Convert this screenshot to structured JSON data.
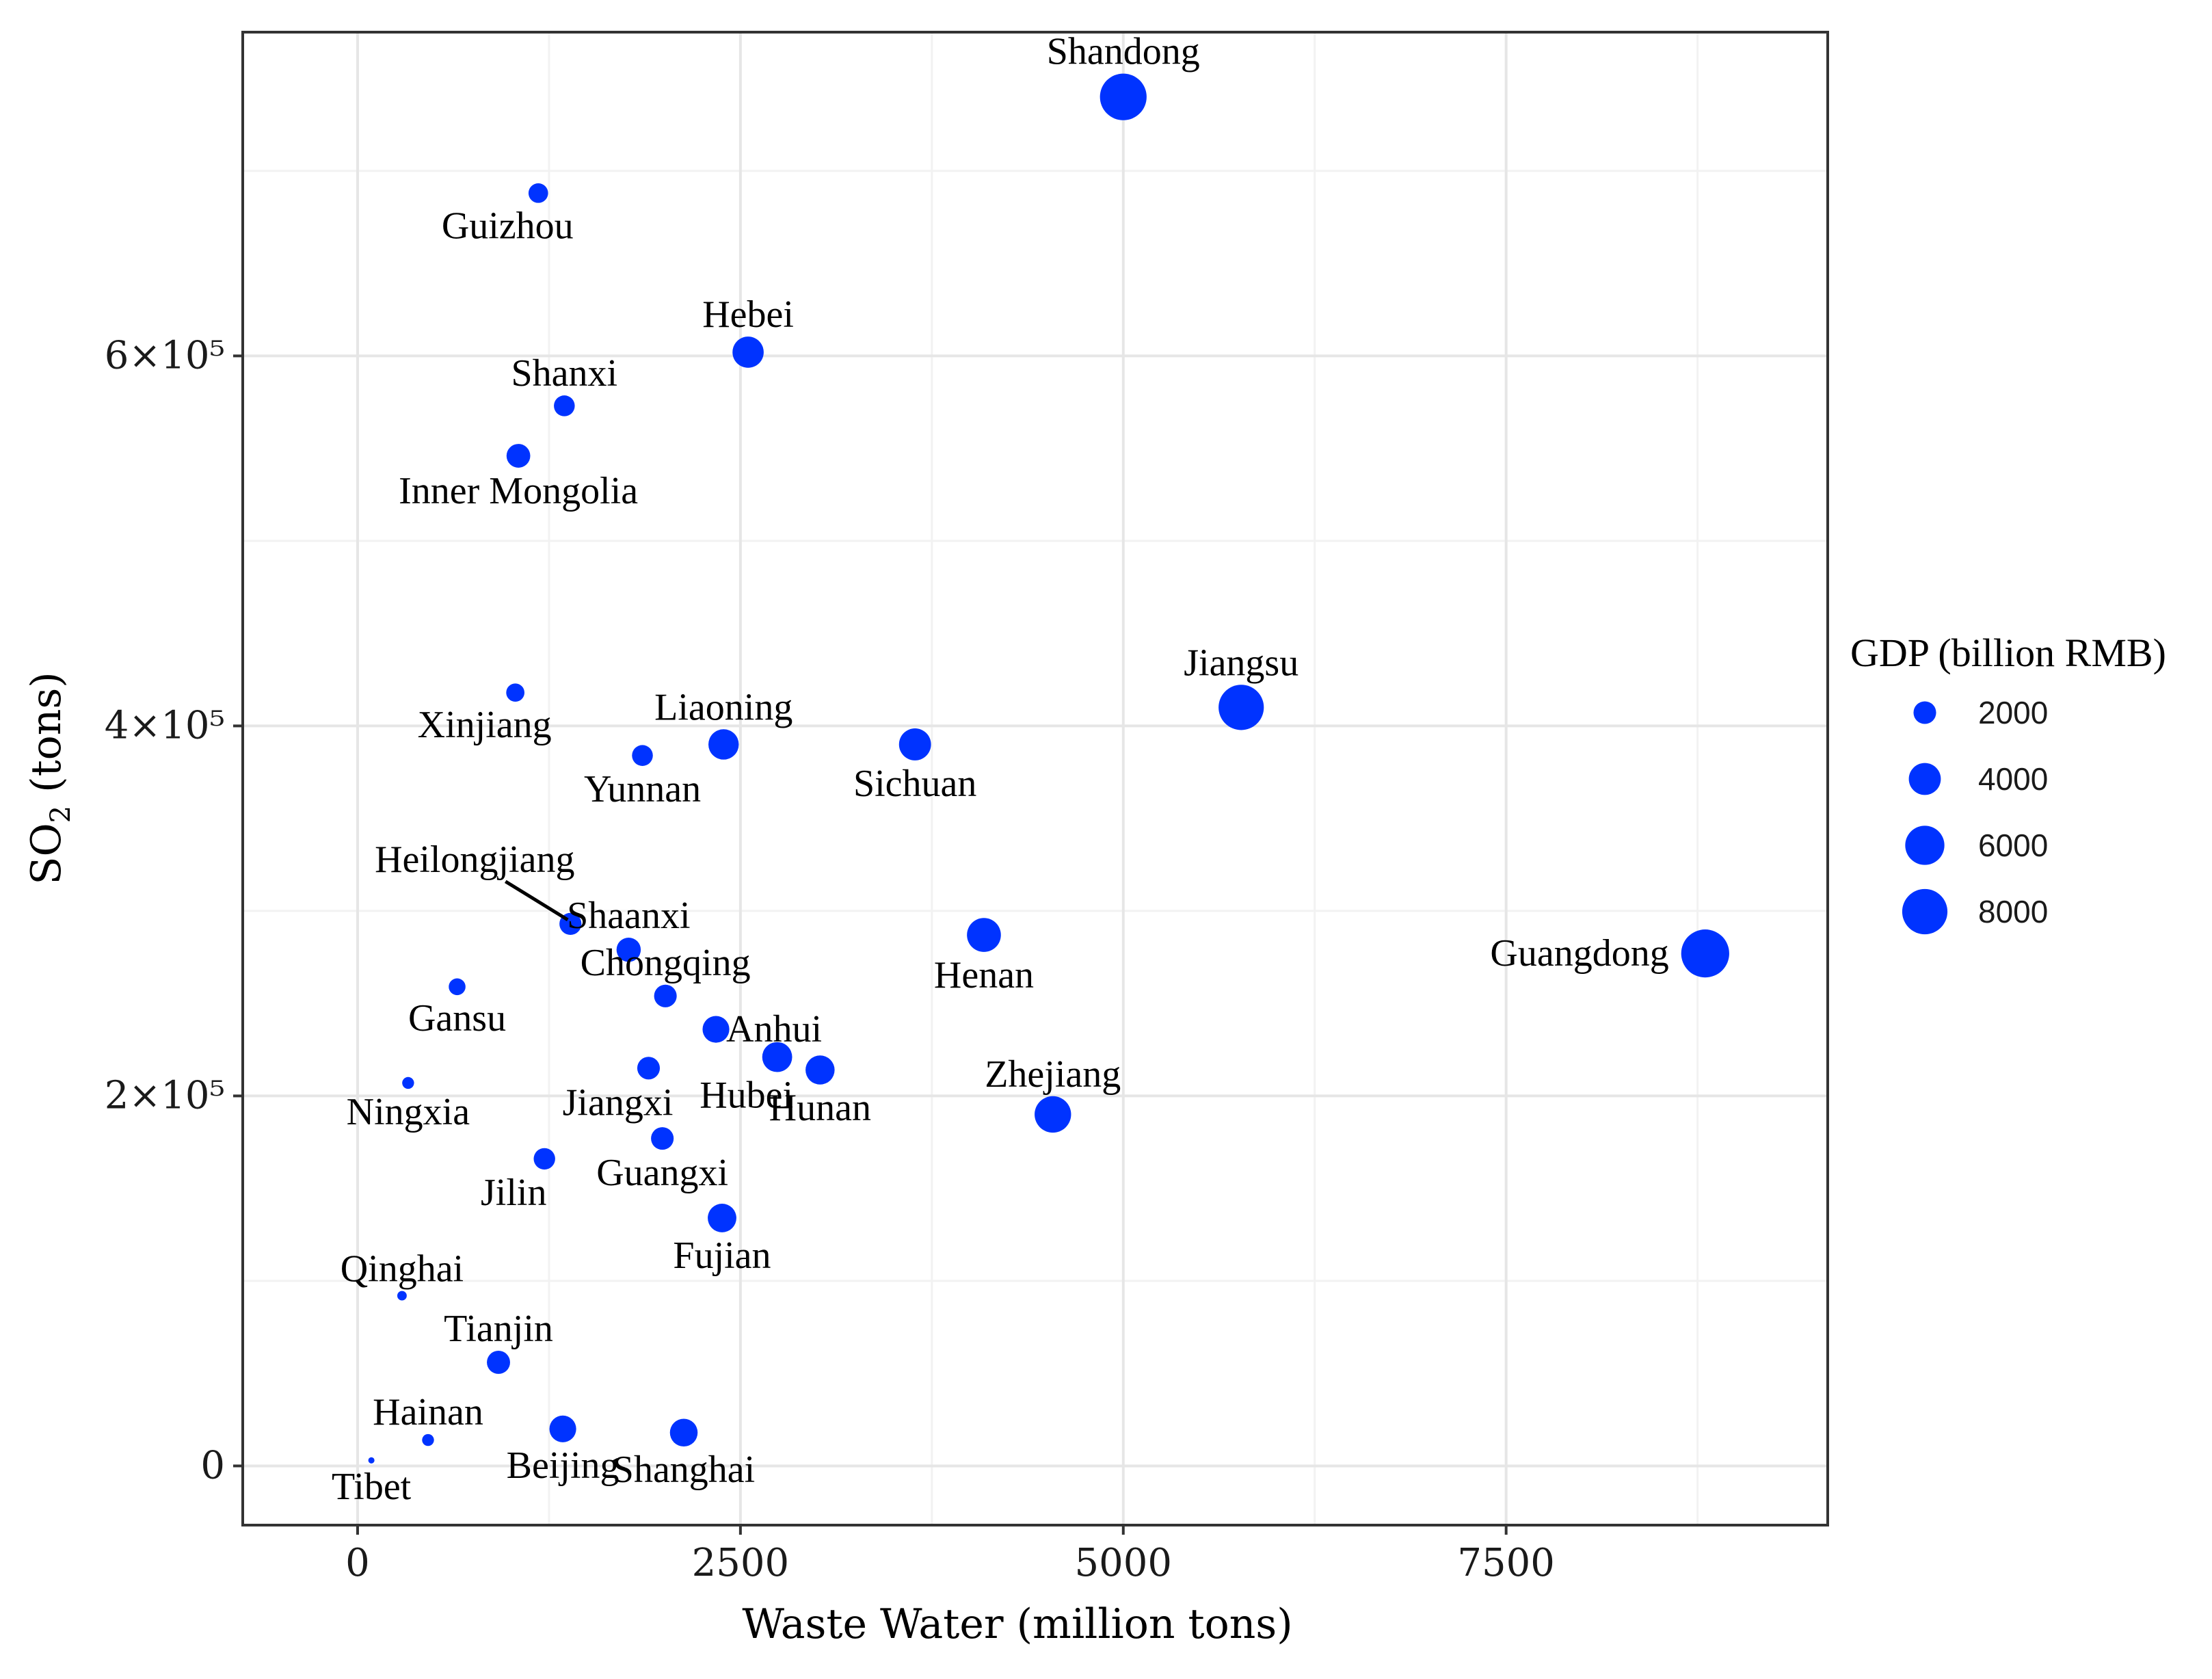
{
  "colors": {
    "point": "#0033ff",
    "grid_major": "#e6e6e6",
    "grid_minor": "#f2f2f2",
    "panel_border": "#333333"
  },
  "chart_data": {
    "type": "scatter",
    "title": "",
    "xlabel": "Waste Water (million tons)",
    "ylabel_main": "SO",
    "ylabel_sub": "2",
    "ylabel_tail": " (tons)",
    "xlim": [
      -750,
      9600
    ],
    "ylim": [
      -32000,
      775000
    ],
    "x_ticks": [
      {
        "value": 0,
        "label": "0"
      },
      {
        "value": 2500,
        "label": "2500"
      },
      {
        "value": 5000,
        "label": "5000"
      },
      {
        "value": 7500,
        "label": "7500"
      }
    ],
    "x_minor": [
      1250,
      3750,
      6250,
      8750
    ],
    "y_ticks": [
      {
        "value": 0,
        "label": "0"
      },
      {
        "value": 200000,
        "label": "2×10⁵"
      },
      {
        "value": 400000,
        "label": "4×10⁵"
      },
      {
        "value": 600000,
        "label": "6×10⁵"
      }
    ],
    "y_minor": [
      100000,
      300000,
      500000,
      700000
    ],
    "legend": {
      "title": "GDP (billion RMB)",
      "position": "right",
      "entries": [
        {
          "value": 2000,
          "label": "2000"
        },
        {
          "value": 4000,
          "label": "4000"
        },
        {
          "value": 6000,
          "label": "6000"
        },
        {
          "value": 8000,
          "label": "8000"
        }
      ]
    },
    "points": [
      {
        "label": "Shandong",
        "x": 5000,
        "y": 740000,
        "gdp": 8500,
        "lp": "t"
      },
      {
        "label": "Guizhou",
        "x": 1180,
        "y": 688000,
        "gdp": 1500,
        "lp": "bl"
      },
      {
        "label": "Hebei",
        "x": 2550,
        "y": 602000,
        "gdp": 3800,
        "lp": "t"
      },
      {
        "label": "Shanxi",
        "x": 1350,
        "y": 573000,
        "gdp": 1700,
        "lp": "t"
      },
      {
        "label": "Inner Mongolia",
        "x": 1050,
        "y": 546000,
        "gdp": 2200,
        "lp": "b"
      },
      {
        "label": "Jiangsu",
        "x": 5770,
        "y": 410000,
        "gdp": 8000,
        "lp": "t"
      },
      {
        "label": "Xinjiang",
        "x": 1030,
        "y": 418000,
        "gdp": 1300,
        "lp": "bl"
      },
      {
        "label": "Liaoning",
        "x": 2390,
        "y": 390000,
        "gdp": 3600,
        "lp": "t"
      },
      {
        "label": "Sichuan",
        "x": 3640,
        "y": 390000,
        "gdp": 4000,
        "lp": "b"
      },
      {
        "label": "Yunnan",
        "x": 1860,
        "y": 384000,
        "gdp": 1700,
        "lp": "b"
      },
      {
        "label": "Heilongjiang",
        "x": 1390,
        "y": 293000,
        "gdp": 1900,
        "lp": "callout"
      },
      {
        "label": "Shaanxi",
        "x": 1770,
        "y": 279000,
        "gdp": 2300,
        "lp": "t"
      },
      {
        "label": "Henan",
        "x": 4090,
        "y": 287000,
        "gdp": 4500,
        "lp": "b"
      },
      {
        "label": "Guangdong",
        "x": 8800,
        "y": 277000,
        "gdp": 9000,
        "lp": "l"
      },
      {
        "label": "Gansu",
        "x": 650,
        "y": 259000,
        "gdp": 1100,
        "lp": "b"
      },
      {
        "label": "Chongqing",
        "x": 2010,
        "y": 254000,
        "gdp": 2000,
        "lp": "t"
      },
      {
        "label": "Anhui",
        "x": 2340,
        "y": 236000,
        "gdp": 2800,
        "lp": "r"
      },
      {
        "label": "Hubei",
        "x": 2740,
        "y": 221000,
        "gdp": 3500,
        "lp": "bl"
      },
      {
        "label": "Hunan",
        "x": 3020,
        "y": 214000,
        "gdp": 3300,
        "lp": "b"
      },
      {
        "label": "Jiangxi",
        "x": 1900,
        "y": 215000,
        "gdp": 2000,
        "lp": "bl"
      },
      {
        "label": "Zhejiang",
        "x": 4540,
        "y": 190000,
        "gdp": 5200,
        "lp": "t"
      },
      {
        "label": "Ningxia",
        "x": 330,
        "y": 207000,
        "gdp": 550,
        "lp": "b"
      },
      {
        "label": "Guangxi",
        "x": 1990,
        "y": 177000,
        "gdp": 2000,
        "lp": "b"
      },
      {
        "label": "Jilin",
        "x": 1220,
        "y": 166000,
        "gdp": 1800,
        "lp": "bl"
      },
      {
        "label": "Fujian",
        "x": 2380,
        "y": 134000,
        "gdp": 3200,
        "lp": "b"
      },
      {
        "label": "Qinghai",
        "x": 290,
        "y": 92000,
        "gdp": 350,
        "lp": "t"
      },
      {
        "label": "Tianjin",
        "x": 920,
        "y": 56000,
        "gdp": 2100,
        "lp": "t"
      },
      {
        "label": "Hainan",
        "x": 460,
        "y": 14000,
        "gdp": 550,
        "lp": "t"
      },
      {
        "label": "Beijing",
        "x": 1340,
        "y": 20000,
        "gdp": 2800,
        "lp": "b"
      },
      {
        "label": "Shanghai",
        "x": 2130,
        "y": 18000,
        "gdp": 3000,
        "lp": "b"
      },
      {
        "label": "Tibet",
        "x": 90,
        "y": 3000,
        "gdp": 150,
        "lp": "b"
      }
    ]
  }
}
